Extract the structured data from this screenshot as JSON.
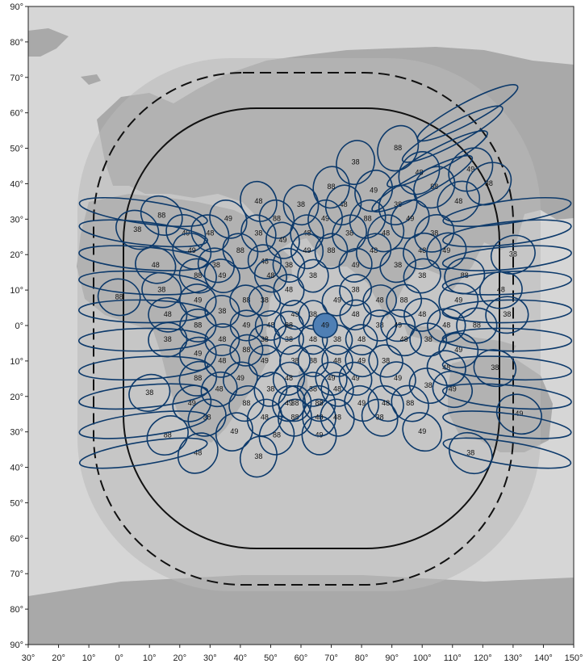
{
  "colors": {
    "ocean": "#d6d6d6",
    "land": "#a9a9a9",
    "coverage_outer": "#b9b9b9",
    "coverage_inner": "#9a9a9a",
    "beam": "#0d3a6b",
    "highlight": "#4f7fb4"
  },
  "axes": {
    "x_ticks": [
      "30°",
      "20°",
      "10°",
      "0°",
      "10°",
      "20°",
      "30°",
      "40°",
      "50°",
      "60°",
      "70°",
      "80°",
      "90°",
      "100°",
      "110°",
      "120°",
      "130°",
      "140°",
      "150°"
    ],
    "y_ticks": [
      "90°",
      "80°",
      "70°",
      "60°",
      "50°",
      "40°",
      "30°",
      "20°",
      "10°",
      "0°",
      "10°",
      "20°",
      "30°",
      "40°",
      "50°",
      "60°",
      "70°",
      "80°",
      "90°"
    ]
  },
  "sub_satellite_longitude": 63,
  "highlight_beam": {
    "lon": 68,
    "lat": 0,
    "label": "49"
  },
  "beam_labels": [
    {
      "lon": 14,
      "lat": 31,
      "label": "88"
    },
    {
      "lon": 6,
      "lat": 27,
      "label": "38"
    },
    {
      "lon": 22,
      "lat": 26,
      "label": "49"
    },
    {
      "lon": 30,
      "lat": 26,
      "label": "48"
    },
    {
      "lon": 12,
      "lat": 17,
      "label": "48"
    },
    {
      "lon": 24,
      "lat": 21,
      "label": "49"
    },
    {
      "lon": 32,
      "lat": 17,
      "label": "38"
    },
    {
      "lon": 40,
      "lat": 21,
      "label": "88"
    },
    {
      "lon": 14,
      "lat": 10,
      "label": "38"
    },
    {
      "lon": 26,
      "lat": 14,
      "label": "88"
    },
    {
      "lon": 34,
      "lat": 14,
      "label": "49"
    },
    {
      "lon": 0,
      "lat": 8,
      "label": "88"
    },
    {
      "lon": 16,
      "lat": 3,
      "label": "48"
    },
    {
      "lon": 26,
      "lat": 7,
      "label": "49"
    },
    {
      "lon": 34,
      "lat": 4,
      "label": "38"
    },
    {
      "lon": 42,
      "lat": 7,
      "label": "88"
    },
    {
      "lon": 16,
      "lat": -4,
      "label": "38"
    },
    {
      "lon": 26,
      "lat": 0,
      "label": "88"
    },
    {
      "lon": 34,
      "lat": -4,
      "label": "48"
    },
    {
      "lon": 42,
      "lat": 0,
      "label": "49"
    },
    {
      "lon": 26,
      "lat": -8,
      "label": "49"
    },
    {
      "lon": 34,
      "lat": -10,
      "label": "48"
    },
    {
      "lon": 42,
      "lat": -7,
      "label": "88"
    },
    {
      "lon": 26,
      "lat": -15,
      "label": "88"
    },
    {
      "lon": 33,
      "lat": -18,
      "label": "48"
    },
    {
      "lon": 40,
      "lat": -15,
      "label": "49"
    },
    {
      "lon": 10,
      "lat": -19,
      "label": "38"
    },
    {
      "lon": 24,
      "lat": -22,
      "label": "49"
    },
    {
      "lon": 42,
      "lat": -22,
      "label": "88"
    },
    {
      "lon": 29,
      "lat": -26,
      "label": "38"
    },
    {
      "lon": 16,
      "lat": -31,
      "label": "88"
    },
    {
      "lon": 38,
      "lat": -30,
      "label": "49"
    },
    {
      "lon": 48,
      "lat": -26,
      "label": "48"
    },
    {
      "lon": 26,
      "lat": -36,
      "label": "48"
    },
    {
      "lon": 46,
      "lat": -37,
      "label": "38"
    },
    {
      "lon": 52,
      "lat": -31,
      "label": "88"
    },
    {
      "lon": 46,
      "lat": 35,
      "label": "48"
    },
    {
      "lon": 36,
      "lat": 30,
      "label": "49"
    },
    {
      "lon": 52,
      "lat": 30,
      "label": "88"
    },
    {
      "lon": 60,
      "lat": 34,
      "label": "38"
    },
    {
      "lon": 46,
      "lat": 26,
      "label": "38"
    },
    {
      "lon": 54,
      "lat": 24,
      "label": "49"
    },
    {
      "lon": 62,
      "lat": 26,
      "label": "48"
    },
    {
      "lon": 48,
      "lat": 18,
      "label": "48"
    },
    {
      "lon": 56,
      "lat": 17,
      "label": "38"
    },
    {
      "lon": 62,
      "lat": 21,
      "label": "49"
    },
    {
      "lon": 68,
      "lat": 30,
      "label": "49"
    },
    {
      "lon": 70,
      "lat": 21,
      "label": "88"
    },
    {
      "lon": 74,
      "lat": 34,
      "label": "48"
    },
    {
      "lon": 70,
      "lat": 39,
      "label": "88"
    },
    {
      "lon": 76,
      "lat": 26,
      "label": "38"
    },
    {
      "lon": 78,
      "lat": 17,
      "label": "49"
    },
    {
      "lon": 82,
      "lat": 30,
      "label": "88"
    },
    {
      "lon": 84,
      "lat": 21,
      "label": "48"
    },
    {
      "lon": 84,
      "lat": 38,
      "label": "49"
    },
    {
      "lon": 92,
      "lat": 34,
      "label": "38"
    },
    {
      "lon": 88,
      "lat": 26,
      "label": "48"
    },
    {
      "lon": 92,
      "lat": 17,
      "label": "38"
    },
    {
      "lon": 96,
      "lat": 30,
      "label": "49"
    },
    {
      "lon": 100,
      "lat": 21,
      "label": "48"
    },
    {
      "lon": 104,
      "lat": 26,
      "label": "38"
    },
    {
      "lon": 108,
      "lat": 21,
      "label": "49"
    },
    {
      "lon": 104,
      "lat": 39,
      "label": "88"
    },
    {
      "lon": 99,
      "lat": 43,
      "label": "48"
    },
    {
      "lon": 112,
      "lat": 35,
      "label": "48"
    },
    {
      "lon": 116,
      "lat": 44,
      "label": "49"
    },
    {
      "lon": 122,
      "lat": 40,
      "label": "38"
    },
    {
      "lon": 92,
      "lat": 50,
      "label": "88"
    },
    {
      "lon": 78,
      "lat": 46,
      "label": "38"
    },
    {
      "lon": 50,
      "lat": 14,
      "label": "48"
    },
    {
      "lon": 56,
      "lat": 10,
      "label": "48"
    },
    {
      "lon": 64,
      "lat": 14,
      "label": "38"
    },
    {
      "lon": 58,
      "lat": 3,
      "label": "49"
    },
    {
      "lon": 48,
      "lat": 7,
      "label": "38"
    },
    {
      "lon": 50,
      "lat": 0,
      "label": "48"
    },
    {
      "lon": 56,
      "lat": -4,
      "label": "38"
    },
    {
      "lon": 56,
      "lat": 0,
      "label": "88"
    },
    {
      "lon": 64,
      "lat": 3,
      "label": "38"
    },
    {
      "lon": 64,
      "lat": -4,
      "label": "48"
    },
    {
      "lon": 72,
      "lat": 7,
      "label": "49"
    },
    {
      "lon": 72,
      "lat": -4,
      "label": "38"
    },
    {
      "lon": 78,
      "lat": 3,
      "label": "48"
    },
    {
      "lon": 78,
      "lat": 10,
      "label": "38"
    },
    {
      "lon": 80,
      "lat": -4,
      "label": "48"
    },
    {
      "lon": 86,
      "lat": 7,
      "label": "48"
    },
    {
      "lon": 86,
      "lat": 0,
      "label": "38"
    },
    {
      "lon": 88,
      "lat": -10,
      "label": "38"
    },
    {
      "lon": 92,
      "lat": 0,
      "label": "49"
    },
    {
      "lon": 94,
      "lat": 7,
      "label": "88"
    },
    {
      "lon": 94,
      "lat": -4,
      "label": "48"
    },
    {
      "lon": 100,
      "lat": 3,
      "label": "48"
    },
    {
      "lon": 100,
      "lat": 14,
      "label": "38"
    },
    {
      "lon": 102,
      "lat": -4,
      "label": "38"
    },
    {
      "lon": 108,
      "lat": 0,
      "label": "48"
    },
    {
      "lon": 112,
      "lat": 7,
      "label": "49"
    },
    {
      "lon": 112,
      "lat": -7,
      "label": "49"
    },
    {
      "lon": 114,
      "lat": 14,
      "label": "88"
    },
    {
      "lon": 118,
      "lat": 0,
      "label": "88"
    },
    {
      "lon": 124,
      "lat": -12,
      "label": "38"
    },
    {
      "lon": 126,
      "lat": 10,
      "label": "48"
    },
    {
      "lon": 128,
      "lat": 3,
      "label": "38"
    },
    {
      "lon": 130,
      "lat": 20,
      "label": "38"
    },
    {
      "lon": 132,
      "lat": -25,
      "label": "49"
    },
    {
      "lon": 116,
      "lat": -36,
      "label": "38"
    },
    {
      "lon": 100,
      "lat": -30,
      "label": "49"
    },
    {
      "lon": 86,
      "lat": -26,
      "label": "38"
    },
    {
      "lon": 80,
      "lat": -22,
      "label": "49"
    },
    {
      "lon": 88,
      "lat": -22,
      "label": "48"
    },
    {
      "lon": 92,
      "lat": -15,
      "label": "49"
    },
    {
      "lon": 96,
      "lat": -22,
      "label": "88"
    },
    {
      "lon": 102,
      "lat": -17,
      "label": "38"
    },
    {
      "lon": 108,
      "lat": -12,
      "label": "48"
    },
    {
      "lon": 110,
      "lat": -18,
      "label": "49"
    },
    {
      "lon": 72,
      "lat": -10,
      "label": "48"
    },
    {
      "lon": 72,
      "lat": -18,
      "label": "48"
    },
    {
      "lon": 78,
      "lat": -15,
      "label": "49"
    },
    {
      "lon": 80,
      "lat": -10,
      "label": "49"
    },
    {
      "lon": 64,
      "lat": -10,
      "label": "88"
    },
    {
      "lon": 64,
      "lat": -18,
      "label": "38"
    },
    {
      "lon": 66,
      "lat": -22,
      "label": "88"
    },
    {
      "lon": 58,
      "lat": -10,
      "label": "38"
    },
    {
      "lon": 56,
      "lat": -15,
      "label": "48"
    },
    {
      "lon": 58,
      "lat": -22,
      "label": "38"
    },
    {
      "lon": 48,
      "lat": -10,
      "label": "49"
    },
    {
      "lon": 50,
      "lat": -18,
      "label": "38"
    },
    {
      "lon": 48,
      "lat": -4,
      "label": "38"
    },
    {
      "lon": 66,
      "lat": -31,
      "label": "49"
    },
    {
      "lon": 66,
      "lat": -26,
      "label": "48"
    },
    {
      "lon": 58,
      "lat": -26,
      "label": "88"
    },
    {
      "lon": 56,
      "lat": -22,
      "label": "49"
    },
    {
      "lon": 70,
      "lat": -15,
      "label": "49"
    },
    {
      "lon": 72,
      "lat": -26,
      "label": "48"
    }
  ]
}
